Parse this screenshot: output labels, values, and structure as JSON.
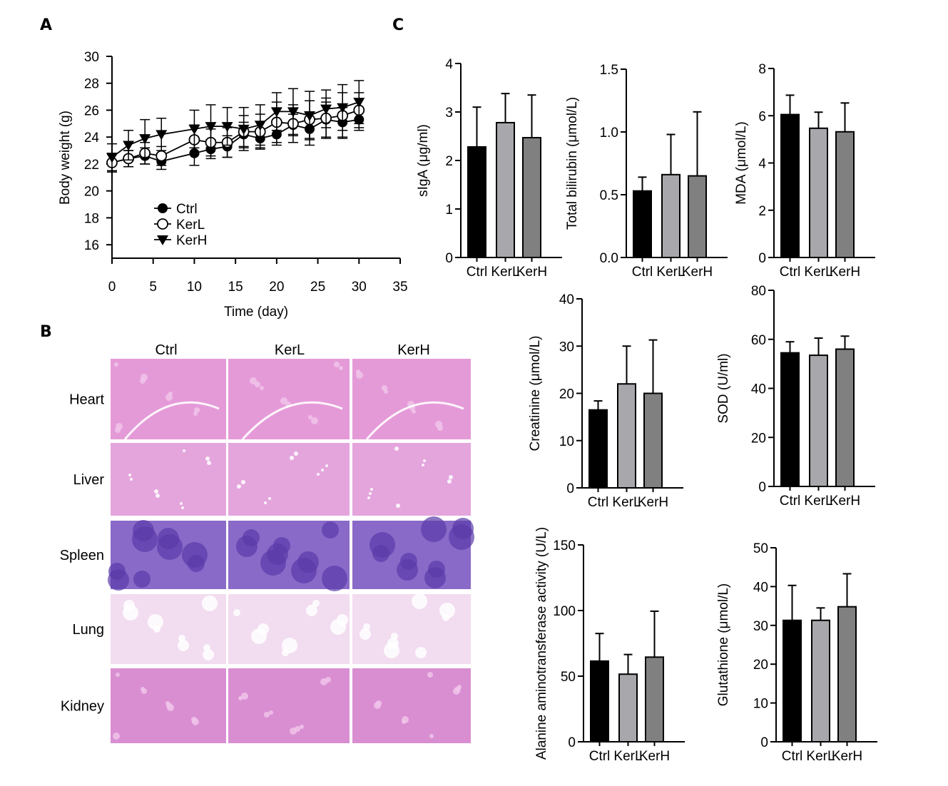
{
  "panels": {
    "a": "A",
    "b": "B",
    "c": "C"
  },
  "colors": {
    "ctrl": "#000000",
    "kerl": "#a8a8ac",
    "kerh": "#808080"
  },
  "histology": {
    "columns": [
      "Ctrl",
      "KerL",
      "KerH"
    ],
    "rows": [
      "Heart",
      "Liver",
      "Spleen",
      "Lung",
      "Kidney"
    ],
    "tissue_colors": [
      "#e59ad8",
      "#e4a5dd",
      "#8a6ac8",
      "#f2dcf0",
      "#d98ed2"
    ]
  },
  "chart_data": [
    {
      "id": "body-weight",
      "type": "line",
      "xlabel": "Time (day)",
      "ylabel": "Body weight (g)",
      "xlim": [
        0,
        35
      ],
      "ylim": [
        15,
        30
      ],
      "xticks": [
        0,
        5,
        10,
        15,
        20,
        25,
        30,
        35
      ],
      "yticks": [
        16,
        18,
        20,
        22,
        24,
        26,
        28,
        30
      ],
      "x": [
        0,
        2,
        4,
        6,
        10,
        12,
        14,
        16,
        18,
        20,
        22,
        24,
        26,
        28,
        30
      ],
      "legend_position": "bottom-left",
      "series": [
        {
          "name": "Ctrl",
          "marker": "filled-circle",
          "values": [
            22.1,
            22.4,
            22.6,
            22.2,
            22.8,
            23.1,
            23.3,
            24.2,
            23.9,
            24.2,
            24.9,
            24.6,
            25.3,
            25.1,
            25.3
          ],
          "errors": [
            0.6,
            0.6,
            0.6,
            0.6,
            0.9,
            0.7,
            0.8,
            0.9,
            0.7,
            0.8,
            0.8,
            1.2,
            1.3,
            1.1,
            0.8
          ]
        },
        {
          "name": "KerL",
          "marker": "open-circle",
          "values": [
            22.1,
            22.4,
            22.8,
            22.6,
            23.8,
            23.6,
            23.6,
            24.4,
            24.4,
            25.1,
            25.0,
            25.3,
            25.4,
            25.6,
            26.0
          ],
          "errors": [
            0.7,
            0.6,
            0.8,
            0.7,
            1.1,
            1.0,
            1.1,
            1.2,
            1.3,
            1.5,
            1.4,
            1.4,
            1.5,
            1.7,
            1.3
          ]
        },
        {
          "name": "KerH",
          "marker": "filled-triangle-down",
          "values": [
            22.5,
            23.4,
            23.9,
            24.2,
            24.6,
            24.8,
            24.8,
            24.6,
            24.9,
            25.9,
            25.9,
            25.6,
            26.1,
            26.2,
            26.6
          ],
          "errors": [
            1.0,
            1.1,
            1.4,
            1.2,
            1.4,
            1.6,
            1.4,
            1.6,
            1.5,
            1.4,
            1.7,
            1.8,
            1.4,
            1.7,
            1.6
          ]
        }
      ]
    },
    {
      "id": "siga",
      "type": "bar",
      "ylabel": "sIgA (μg/ml)",
      "ylim": [
        0,
        4
      ],
      "yticks": [
        "0",
        "1",
        "2",
        "3",
        "4"
      ],
      "categories": [
        "Ctrl",
        "KerL",
        "KerH"
      ],
      "values": [
        2.28,
        2.78,
        2.47
      ],
      "errors": [
        0.82,
        0.6,
        0.88
      ]
    },
    {
      "id": "bilirubin",
      "type": "bar",
      "ylabel": "Total bilirubin (μmol/L)",
      "ylim": [
        0,
        1.5
      ],
      "yticks": [
        "0.0",
        "0.5",
        "1.0",
        "1.5"
      ],
      "categories": [
        "Ctrl",
        "KerL",
        "KerH"
      ],
      "values": [
        0.53,
        0.66,
        0.65
      ],
      "errors": [
        0.11,
        0.32,
        0.51
      ]
    },
    {
      "id": "mda",
      "type": "bar",
      "ylabel": "MDA (μmol/L)",
      "ylim": [
        0,
        8
      ],
      "yticks": [
        "0",
        "2",
        "4",
        "6",
        "8"
      ],
      "categories": [
        "Ctrl",
        "KerL",
        "KerH"
      ],
      "values": [
        6.05,
        5.47,
        5.32
      ],
      "errors": [
        0.82,
        0.68,
        1.22
      ]
    },
    {
      "id": "creatinine",
      "type": "bar",
      "ylabel": "Creatinine (μmol/L)",
      "ylim": [
        0,
        40
      ],
      "yticks": [
        "0",
        "10",
        "20",
        "30",
        "40"
      ],
      "categories": [
        "Ctrl",
        "KerL",
        "KerH"
      ],
      "values": [
        16.5,
        22.0,
        20.0
      ],
      "errors": [
        1.9,
        8.0,
        11.3
      ]
    },
    {
      "id": "sod",
      "type": "bar",
      "ylabel": "SOD (U/ml)",
      "ylim": [
        0,
        80
      ],
      "yticks": [
        "0",
        "20",
        "40",
        "60",
        "80"
      ],
      "categories": [
        "Ctrl",
        "KerL",
        "KerH"
      ],
      "values": [
        54.5,
        53.5,
        56.0
      ],
      "errors": [
        4.5,
        7.0,
        5.3
      ]
    },
    {
      "id": "alt",
      "type": "bar",
      "ylabel": "Alanine aminotransferase activity (U/L)",
      "ylim": [
        0,
        150
      ],
      "yticks": [
        "0",
        "50",
        "100",
        "150"
      ],
      "categories": [
        "Ctrl",
        "KerL",
        "KerH"
      ],
      "values": [
        61.5,
        51.5,
        64.5
      ],
      "errors": [
        21.0,
        15.0,
        35.0
      ]
    },
    {
      "id": "glutathione",
      "type": "bar",
      "ylabel": "Glutathione (μmol/L)",
      "ylim": [
        0,
        50
      ],
      "yticks": [
        "0",
        "10",
        "20",
        "30",
        "40",
        "50"
      ],
      "categories": [
        "Ctrl",
        "KerL",
        "KerH"
      ],
      "values": [
        31.3,
        31.3,
        34.8
      ],
      "errors": [
        9.0,
        3.2,
        8.5
      ]
    }
  ]
}
